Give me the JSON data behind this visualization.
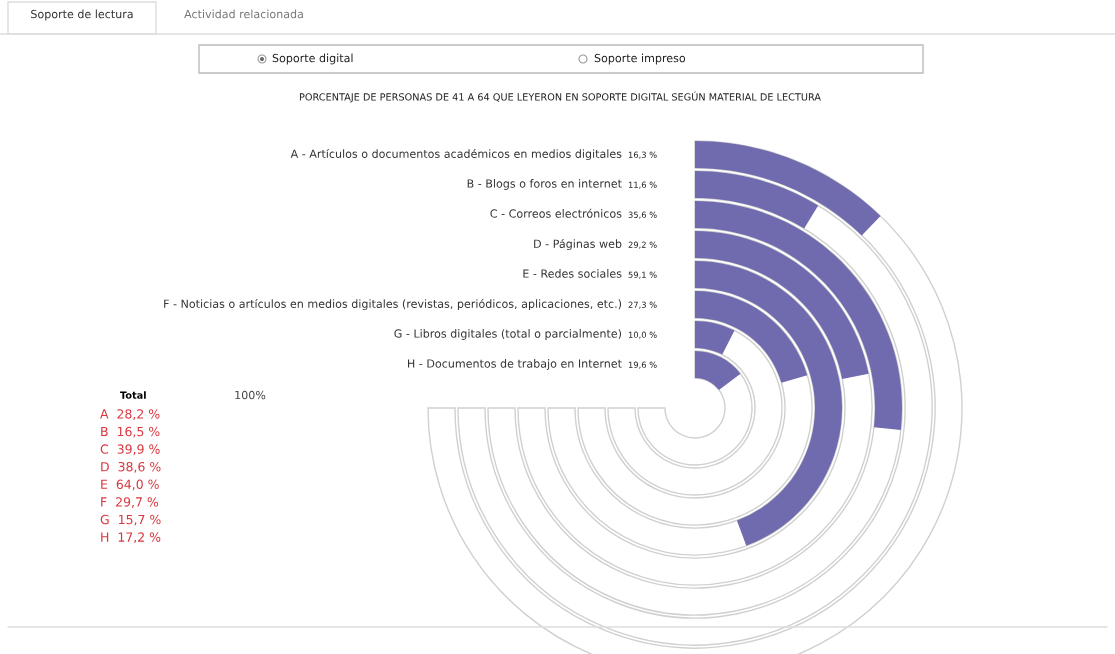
{
  "chart_data": {
    "type": "other",
    "title": "PORCENTAJE DE PERSONAS DE 41 A 64 QUE LEYERON EN SOPORTE DIGITAL SEGÚN MATERIAL DE LECTURA",
    "categories": [
      "A - Artículos o documentos académicos en medios digitales",
      "B - Blogs o foros en internet",
      "C - Correos electrónicos",
      "D - Páginas web",
      "E - Redes sociales",
      "F - Noticias o artículos en medios digitales (revistas, periódicos, aplicaciones, etc.)",
      "G - Libros digitales (total o parcialmente)",
      "H - Documentos de trabajo en Internet"
    ],
    "values": [
      16.3,
      11.6,
      35.6,
      29.2,
      59.1,
      27.3,
      10.0,
      19.6
    ],
    "value_labels": [
      "16,3 %",
      "11,6 %",
      "35,6 %",
      "29,2 %",
      "59,1 %",
      "27,3 %",
      "10,0 %",
      "19,6 %"
    ],
    "color": "#6f6bae",
    "annotations": [
      "Soporte de lectura",
      "Actividad relacionada",
      "Soporte digital",
      "Soporte impreso",
      "100%",
      "Total",
      "A  28,2 %",
      "B  16,5 %",
      "C  39,9 %",
      "D  38,6 %",
      "E  64,0 %",
      "F  29,7 %",
      "G  15,7 %",
      "H  17,2 %"
    ]
  }
}
